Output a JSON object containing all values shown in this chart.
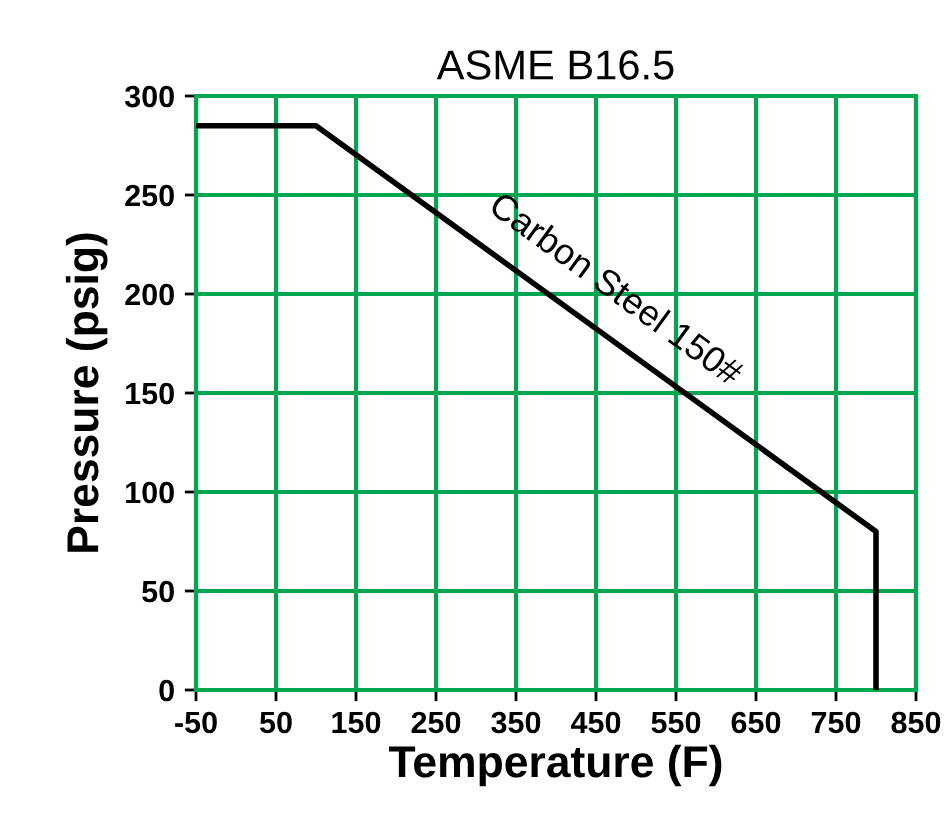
{
  "chart_data": {
    "type": "line",
    "title": "ASME B16.5",
    "xlabel": "Temperature (F)",
    "ylabel": "Pressure (psig)",
    "series": [
      {
        "color": "#000000",
        "x": [
          -50,
          100,
          800,
          800
        ],
        "values": [
          285,
          285,
          80,
          0
        ]
      }
    ],
    "annotations": [
      {
        "text": "Carbon Steel 150#",
        "x": 450,
        "y": 182
      }
    ],
    "xlim": [
      -50,
      850
    ],
    "xticks": [
      -50,
      50,
      150,
      250,
      350,
      450,
      550,
      650,
      750,
      850
    ],
    "ylim": [
      0,
      300
    ],
    "yticks": [
      0,
      50,
      100,
      150,
      200,
      250,
      300
    ],
    "grid": true,
    "legend": false,
    "marker": "none",
    "line_style": "solid"
  }
}
